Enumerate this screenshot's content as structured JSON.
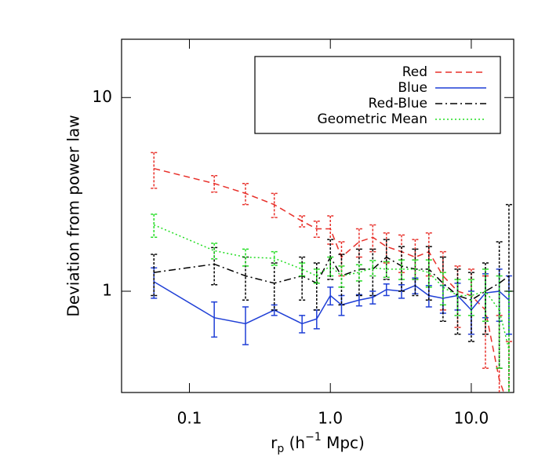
{
  "chart_data": {
    "type": "line",
    "y_label": "Deviation from power law",
    "x_label": [
      "r",
      "p",
      " (h",
      "−1",
      " Mpc)"
    ],
    "log_x": true,
    "log_y": true,
    "xlim": [
      0.033,
      20
    ],
    "ylim": [
      0.3,
      20
    ],
    "xticks": [
      {
        "value": 0.1,
        "label": "0.1"
      },
      {
        "value": 1,
        "label": "1.0"
      },
      {
        "value": 10,
        "label": "10.0"
      }
    ],
    "yticks": [
      1,
      10
    ],
    "legend": "upper right",
    "x": [
      0.056,
      0.15,
      0.25,
      0.4,
      0.63,
      0.8,
      1.0,
      1.2,
      1.6,
      2.0,
      2.5,
      3.2,
      4.0,
      5.0,
      6.3,
      8.0,
      10,
      12.6,
      15.8,
      18.5
    ],
    "series": [
      {
        "name": "Red",
        "color": "#e8302a",
        "line_style": "dashed",
        "values": [
          4.3,
          3.6,
          3.2,
          2.8,
          2.3,
          2.1,
          2.1,
          1.5,
          1.8,
          1.9,
          1.7,
          1.6,
          1.5,
          1.6,
          1.2,
          1.0,
          0.95,
          0.8,
          0.35,
          0.25
        ],
        "errors": [
          0.9,
          0.35,
          0.4,
          0.4,
          0.15,
          0.2,
          0.35,
          0.3,
          0.3,
          0.3,
          0.3,
          0.35,
          0.35,
          0.4,
          0.4,
          0.35,
          0.35,
          0.4,
          0.4,
          0.3
        ]
      },
      {
        "name": "Blue",
        "color": "#1f3fd6",
        "line_style": "solid",
        "values": [
          1.12,
          0.73,
          0.68,
          0.8,
          0.68,
          0.72,
          0.95,
          0.85,
          0.9,
          0.93,
          1.02,
          1.0,
          1.07,
          0.95,
          0.92,
          0.95,
          0.8,
          0.98,
          1.0,
          0.9
        ],
        "errors": [
          0.2,
          0.15,
          0.15,
          0.05,
          0.07,
          0.08,
          0.1,
          0.1,
          0.06,
          0.07,
          0.07,
          0.08,
          0.1,
          0.12,
          0.15,
          0.15,
          0.2,
          0.25,
          0.3,
          0.3
        ]
      },
      {
        "name": "Red-Blue",
        "color": "#000000",
        "line_style": "dashdot",
        "values": [
          1.25,
          1.38,
          1.2,
          1.1,
          1.2,
          1.1,
          1.5,
          1.2,
          1.3,
          1.3,
          1.5,
          1.35,
          1.3,
          1.3,
          1.1,
          0.95,
          0.9,
          1.0,
          1.1,
          1.2
        ],
        "errors": [
          0.3,
          0.3,
          0.3,
          0.3,
          0.3,
          0.3,
          0.35,
          0.35,
          0.35,
          0.35,
          0.35,
          0.35,
          0.35,
          0.4,
          0.4,
          0.35,
          0.35,
          0.4,
          0.7,
          1.6
        ]
      },
      {
        "name": "Geometric Mean",
        "color": "#22dd22",
        "line_style": "dotted",
        "values": [
          2.2,
          1.62,
          1.5,
          1.48,
          1.3,
          1.2,
          1.35,
          1.2,
          1.25,
          1.32,
          1.3,
          1.3,
          1.3,
          1.25,
          1.05,
          0.95,
          0.95,
          1.0,
          0.8,
          0.5
        ],
        "errors": [
          0.3,
          0.15,
          0.15,
          0.12,
          0.1,
          0.1,
          0.15,
          0.15,
          0.12,
          0.12,
          0.12,
          0.15,
          0.15,
          0.2,
          0.2,
          0.2,
          0.2,
          0.3,
          0.4,
          0.5
        ]
      }
    ]
  }
}
